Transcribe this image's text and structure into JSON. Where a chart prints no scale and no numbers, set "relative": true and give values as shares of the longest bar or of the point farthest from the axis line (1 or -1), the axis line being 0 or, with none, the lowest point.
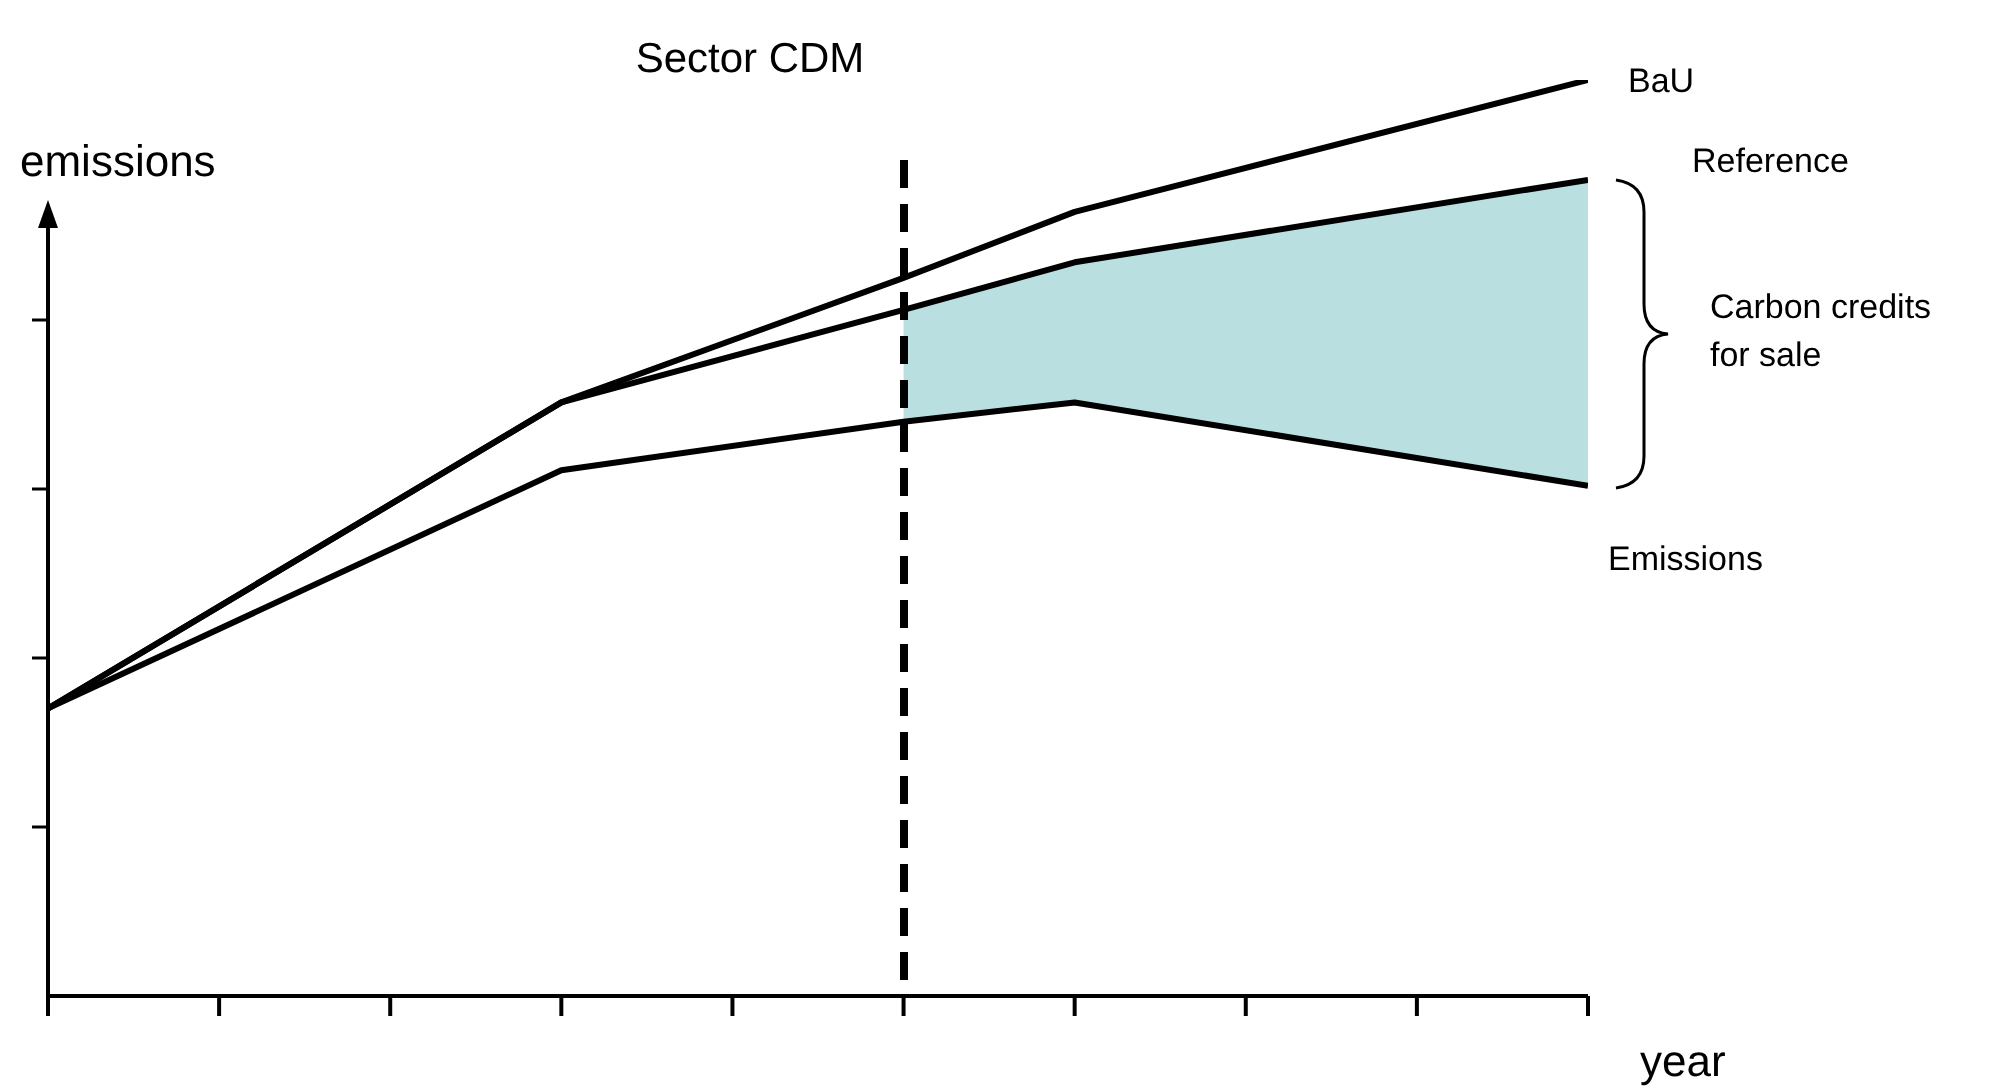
{
  "chart_data": {
    "type": "line",
    "title": "Sector CDM",
    "ylabel": "emissions",
    "xlabel": "year",
    "relative": true,
    "legend": false,
    "grid": false,
    "line_style": "solid",
    "marker": "none",
    "categories": [
      null,
      null,
      null,
      null,
      null,
      null,
      null,
      null,
      null,
      null
    ],
    "series": [
      {
        "name": "BaU",
        "color": "#000000",
        "values": [
          0.314,
          null,
          null,
          0.648,
          null,
          0.784,
          0.856,
          null,
          null,
          1
        ]
      },
      {
        "name": "Reference",
        "color": "#000000",
        "values": [
          0.314,
          null,
          null,
          0.648,
          null,
          0.749,
          0.801,
          null,
          null,
          0.891
        ],
        "upper": [
          null,
          null,
          null,
          null,
          null,
          0.749,
          0.801,
          null,
          null,
          0.891
        ],
        "lower": [
          null,
          null,
          null,
          null,
          null,
          0.627,
          0.648,
          null,
          null,
          0.557
        ]
      },
      {
        "name": "Emissions",
        "color": "#000000",
        "values": [
          0.314,
          null,
          null,
          0.574,
          null,
          0.627,
          0.648,
          null,
          null,
          0.557
        ]
      }
    ],
    "annotations": [
      "Carbon credits\nfor sale"
    ]
  }
}
